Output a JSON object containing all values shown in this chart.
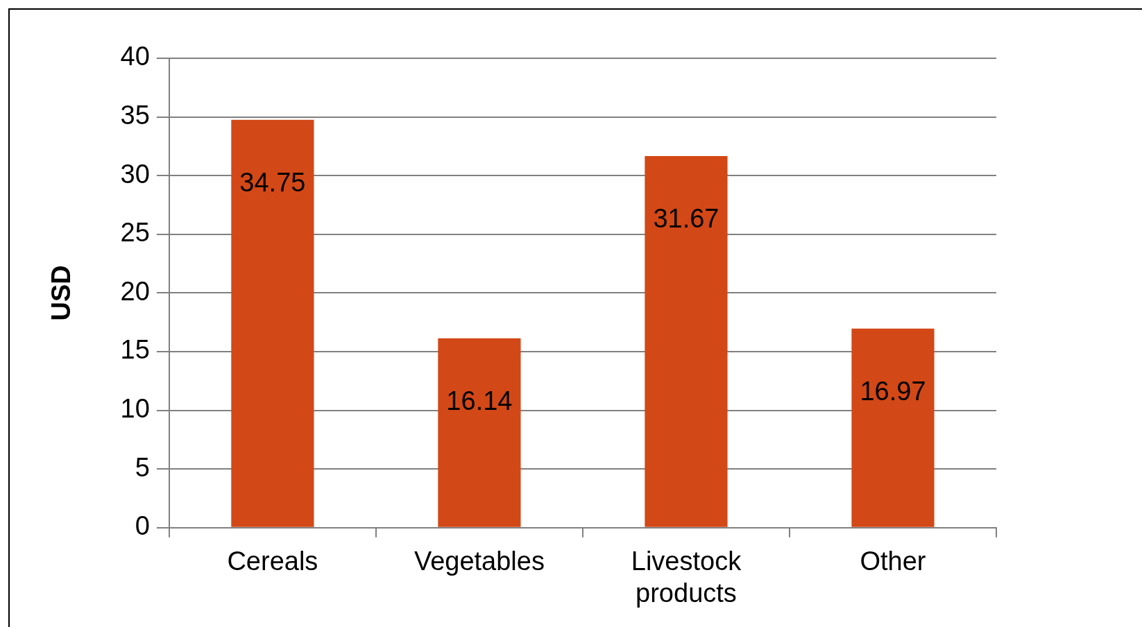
{
  "chart_data": {
    "type": "bar",
    "ylabel": "USD",
    "categories": [
      "Cereals",
      "Vegetables",
      "Livestock products",
      "Other"
    ],
    "values": [
      34.75,
      16.14,
      31.67,
      16.97
    ],
    "color": "#d34817",
    "ylim": [
      0,
      40
    ],
    "yticks": [
      0,
      5,
      10,
      15,
      20,
      25,
      30,
      35,
      40
    ],
    "grid": "y",
    "data_labels": true,
    "legend": false
  }
}
